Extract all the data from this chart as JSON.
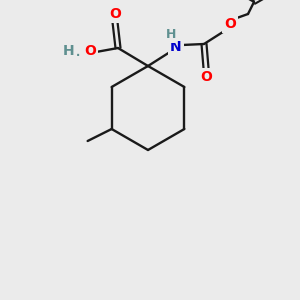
{
  "background_color": "#ebebeb",
  "bond_color": "#1a1a1a",
  "atom_colors": {
    "O": "#ff0000",
    "N": "#0000cc",
    "H_cooh": "#5f9090",
    "H_nh": "#5f9090",
    "C": "#1a1a1a"
  },
  "figsize": [
    3.0,
    3.0
  ],
  "dpi": 100
}
